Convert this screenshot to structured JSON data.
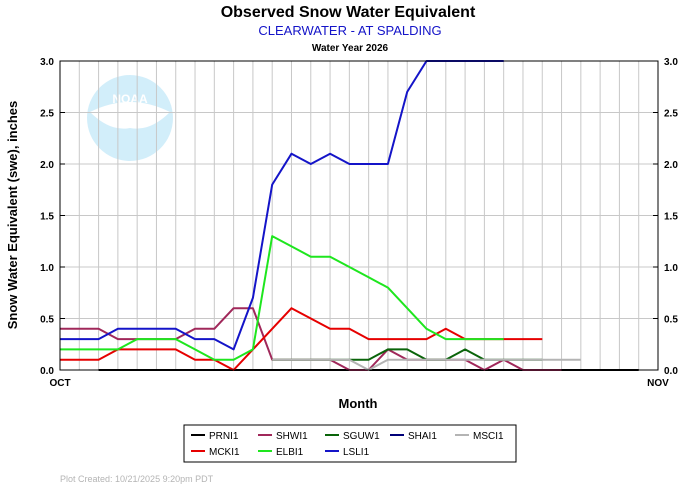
{
  "chart_data": {
    "type": "line",
    "title": "Observed Snow Water Equivalent",
    "subtitle": "CLEARWATER - AT SPALDING",
    "water_year": "Water Year 2026",
    "xlabel": "Month",
    "ylabel": "Snow Water Equivalent (swe),  inches",
    "x_ticks": [
      "OCT",
      "NOV"
    ],
    "xlim_days": [
      0,
      31
    ],
    "ylim": [
      0,
      3.0
    ],
    "y_ticks": [
      "0.0",
      "0.5",
      "1.0",
      "1.5",
      "2.0",
      "2.5",
      "3.0"
    ],
    "y_tick_values": [
      0,
      0.5,
      1.0,
      1.5,
      2.0,
      2.5,
      3.0
    ],
    "grid": true,
    "legend_position": "bottom-center",
    "series": [
      {
        "name": "PRNI1",
        "color": "#000000",
        "x": [
          2,
          3,
          4,
          5,
          6,
          7,
          8,
          9,
          10,
          11,
          12,
          13,
          14,
          15,
          16,
          17,
          18,
          19,
          20,
          21,
          22,
          23,
          24,
          25,
          26,
          27,
          28,
          29,
          30
        ],
        "y": [
          0,
          0,
          0,
          0,
          0,
          0,
          0,
          0,
          0,
          0,
          0,
          0,
          0,
          0,
          0,
          0,
          0,
          0,
          0,
          0,
          0,
          0,
          0,
          0,
          0,
          0,
          0,
          0,
          0
        ]
      },
      {
        "name": "SHWI1",
        "color": "#a0285a",
        "x": [
          0,
          2,
          3,
          4,
          5,
          6,
          7,
          8,
          9,
          10,
          11,
          12,
          13,
          14,
          15,
          16,
          17,
          18,
          19,
          20,
          21,
          22,
          23,
          24,
          25,
          26
        ],
        "y": [
          0.4,
          0.4,
          0.3,
          0.3,
          0.3,
          0.3,
          0.4,
          0.4,
          0.6,
          0.6,
          0.1,
          0.1,
          0.1,
          0.1,
          0.0,
          0.0,
          0.2,
          0.1,
          0.1,
          0.1,
          0.1,
          0.0,
          0.1,
          0.0,
          0.0,
          0.0
        ]
      },
      {
        "name": "SGUW1",
        "color": "#0a640a",
        "x": [
          11,
          12,
          13,
          14,
          15,
          16,
          17,
          18,
          19,
          20,
          21,
          22,
          23,
          24,
          25
        ],
        "y": [
          0.1,
          0.1,
          0.1,
          0.1,
          0.1,
          0.1,
          0.2,
          0.2,
          0.1,
          0.1,
          0.2,
          0.1,
          0.1,
          0.1,
          0.1
        ]
      },
      {
        "name": "SHAI1",
        "color": "#000078",
        "x": [],
        "y": []
      },
      {
        "name": "MSCI1",
        "color": "#b4b4b4",
        "x": [
          11,
          12,
          13,
          14,
          15,
          16,
          17,
          18,
          19,
          20,
          21,
          22,
          23,
          24,
          25,
          26,
          27
        ],
        "y": [
          0.1,
          0.1,
          0.1,
          0.1,
          0.1,
          0.0,
          0.1,
          0.1,
          0.1,
          0.1,
          0.1,
          0.1,
          0.1,
          0.1,
          0.1,
          0.1,
          0.1
        ]
      },
      {
        "name": "MCKI1",
        "color": "#e60000",
        "x": [
          0,
          2,
          3,
          4,
          5,
          6,
          7,
          8,
          9,
          10,
          11,
          12,
          13,
          14,
          15,
          16,
          17,
          18,
          19,
          20,
          21,
          22,
          23,
          24,
          25
        ],
        "y": [
          0.1,
          0.1,
          0.2,
          0.2,
          0.2,
          0.2,
          0.1,
          0.1,
          0.0,
          0.2,
          0.4,
          0.6,
          0.5,
          0.4,
          0.4,
          0.3,
          0.3,
          0.3,
          0.3,
          0.4,
          0.3,
          0.3,
          0.3,
          0.3,
          0.3
        ]
      },
      {
        "name": "ELBI1",
        "color": "#1ee61e",
        "x": [
          0,
          2,
          3,
          4,
          5,
          6,
          7,
          8,
          9,
          10,
          11,
          12,
          13,
          14,
          15,
          16,
          17,
          18,
          19,
          20,
          21,
          22,
          23
        ],
        "y": [
          0.2,
          0.2,
          0.2,
          0.3,
          0.3,
          0.3,
          0.2,
          0.1,
          0.1,
          0.2,
          1.3,
          1.2,
          1.1,
          1.1,
          1.0,
          0.9,
          0.8,
          0.6,
          0.4,
          0.3,
          0.3,
          0.3,
          0.3
        ]
      },
      {
        "name": "LSLI1",
        "color": "#1414c8",
        "x": [
          0,
          2,
          3,
          4,
          5,
          6,
          7,
          8,
          9,
          10,
          11,
          12,
          13,
          14,
          15,
          16,
          17,
          18,
          19,
          20,
          21,
          22,
          23
        ],
        "y": [
          0.3,
          0.3,
          0.4,
          0.4,
          0.4,
          0.4,
          0.3,
          0.3,
          0.2,
          0.7,
          1.8,
          2.1,
          2.0,
          2.1,
          2.0,
          2.0,
          2.0,
          2.7,
          3.0,
          3.0,
          3.0,
          3.0,
          3.0
        ]
      }
    ]
  },
  "legend_order": [
    "PRNI1",
    "SHWI1",
    "SGUW1",
    "SHAI1",
    "MSCI1",
    "MCKI1",
    "ELBI1",
    "LSLI1"
  ],
  "watermark_text": "NOAA",
  "footer": "Plot Created:  10/21/2025 9:20pm PDT"
}
